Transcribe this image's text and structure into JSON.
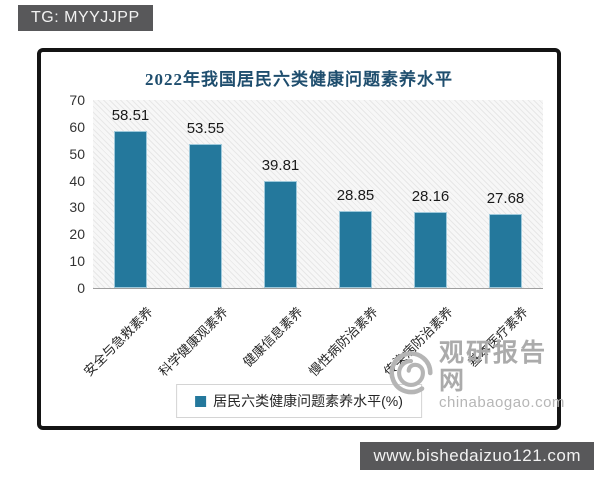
{
  "overlays": {
    "telegram_badge": "TG: MYYJJPP",
    "website_badge": "www.bishedaizuo121.com"
  },
  "watermark": {
    "site_name": "观研报告网",
    "site_domain": "chinabaogao.com",
    "logo": "swirl-icon"
  },
  "colors": {
    "bar": "#24789c",
    "title": "#1f4e6e",
    "badge_bg": "#58585a",
    "badge_text": "#f2f2f2",
    "watermark": "#b0b0b0"
  },
  "chart_data": {
    "type": "bar",
    "title": "2022年我国居民六类健康问题素养水平",
    "categories": [
      "安全与急救素养",
      "科学健康观素养",
      "健康信息素养",
      "慢性病防治素养",
      "传染病防治素养",
      "基本医疗素养"
    ],
    "values": [
      58.51,
      53.55,
      39.81,
      28.85,
      28.16,
      27.68
    ],
    "data_labels": [
      "58.51",
      "53.55",
      "39.81",
      "28.85",
      "28.16",
      "27.68"
    ],
    "ylim": [
      0,
      70
    ],
    "yticks": [
      0,
      10,
      20,
      30,
      40,
      50,
      60,
      70
    ],
    "xlabel": "",
    "ylabel": "",
    "grid": false,
    "legend_position": "bottom",
    "legend_label": "居民六类健康问题素养水平(%)"
  }
}
